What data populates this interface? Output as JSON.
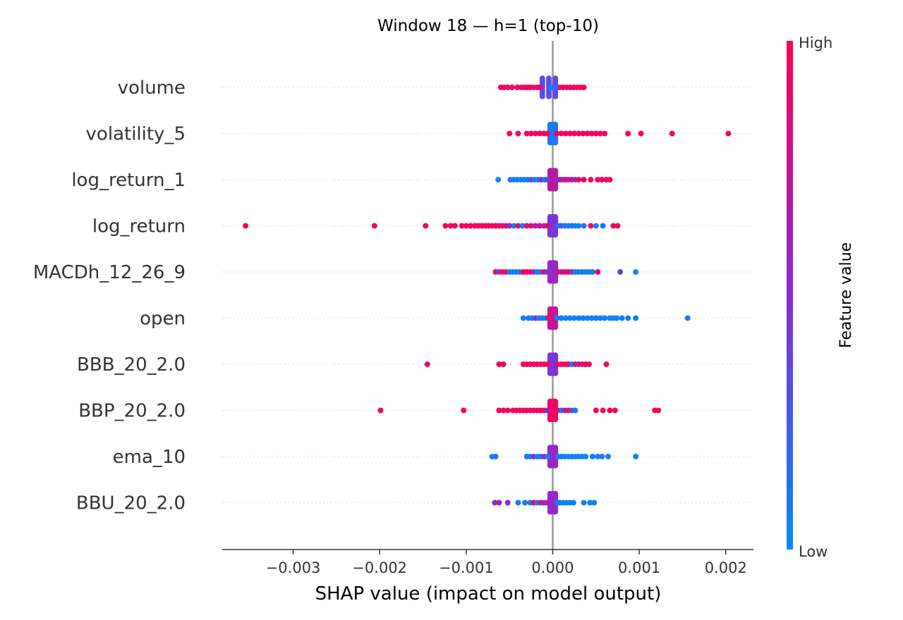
{
  "chart_data": {
    "type": "scatter",
    "subtype": "shap-beeswarm",
    "title": "Window 18 — h=1 (top-10)",
    "xlabel": "SHAP value (impact on model output)",
    "xlim": [
      -0.00382,
      0.00232
    ],
    "xticks": [
      -0.003,
      -0.002,
      -0.001,
      0.0,
      0.001,
      0.002
    ],
    "xtick_labels": [
      "−0.003",
      "−0.002",
      "−0.001",
      "0.000",
      "0.001",
      "0.002"
    ],
    "zero_line": 0.0,
    "colorbar": {
      "label": "Feature value",
      "high_label": "High",
      "low_label": "Low",
      "high_color": "#ff0052",
      "mid_color": "#8a2bd6",
      "low_color": "#008bfb"
    },
    "features": [
      {
        "name": "volume",
        "core": [
          -0.00012,
          3e-05
        ],
        "core_fv": 0.35,
        "points": [
          [
            -0.0006,
            0.95
          ],
          [
            -0.00056,
            0.95
          ],
          [
            -0.00052,
            0.9
          ],
          [
            -0.00047,
            0.95
          ],
          [
            -0.00041,
            0.95
          ],
          [
            -0.00036,
            0.9
          ],
          [
            -0.00032,
            0.95
          ],
          [
            -0.00029,
            0.95
          ],
          [
            -0.00026,
            0.95
          ],
          [
            -0.00022,
            0.95
          ],
          [
            -0.00018,
            0.9
          ],
          [
            -0.00015,
            0.95
          ],
          [
            8e-05,
            0.95
          ],
          [
            0.00012,
            0.95
          ],
          [
            0.00016,
            0.95
          ],
          [
            0.0002,
            0.95
          ],
          [
            0.00024,
            0.95
          ],
          [
            0.00028,
            0.95
          ],
          [
            0.00032,
            0.95
          ],
          [
            0.00036,
            0.95
          ],
          [
            -3e-05,
            0.1
          ],
          [
            3e-05,
            0.1
          ],
          [
            0.0,
            0.05
          ],
          [
            1e-05,
            0.15
          ]
        ]
      },
      {
        "name": "volatility_5",
        "core": [
          -3e-05,
          3e-05
        ],
        "core_fv": 0.1,
        "points": [
          [
            -0.0005,
            0.95
          ],
          [
            -0.0004,
            0.95
          ],
          [
            -0.0003,
            0.95
          ],
          [
            -0.00025,
            0.95
          ],
          [
            -0.0002,
            0.95
          ],
          [
            -0.00015,
            0.95
          ],
          [
            -0.0001,
            0.95
          ],
          [
            -6e-05,
            0.95
          ],
          [
            5e-05,
            0.95
          ],
          [
            0.0001,
            0.95
          ],
          [
            0.00015,
            0.95
          ],
          [
            0.0002,
            0.95
          ],
          [
            0.00025,
            0.95
          ],
          [
            0.0003,
            0.95
          ],
          [
            0.00035,
            0.95
          ],
          [
            0.0004,
            0.95
          ],
          [
            0.00045,
            0.95
          ],
          [
            0.0005,
            0.95
          ],
          [
            0.00055,
            0.95
          ],
          [
            0.0006,
            0.95
          ],
          [
            0.00087,
            0.95
          ],
          [
            0.00102,
            0.95
          ],
          [
            0.00138,
            0.95
          ],
          [
            0.00203,
            0.95
          ]
        ]
      },
      {
        "name": "log_return_1",
        "core": [
          -3e-05,
          3e-05
        ],
        "core_fv": 0.7,
        "points": [
          [
            -0.00063,
            0.05
          ],
          [
            -0.00049,
            0.1
          ],
          [
            -0.00045,
            0.05
          ],
          [
            -0.00041,
            0.1
          ],
          [
            -0.00037,
            0.05
          ],
          [
            -0.00033,
            0.1
          ],
          [
            -0.00029,
            0.05
          ],
          [
            -0.00025,
            0.3
          ],
          [
            -0.00021,
            0.05
          ],
          [
            -0.00017,
            0.1
          ],
          [
            -0.00013,
            0.5
          ],
          [
            -9e-05,
            0.1
          ],
          [
            -6e-05,
            0.4
          ],
          [
            6e-05,
            0.5
          ],
          [
            9e-05,
            0.6
          ],
          [
            0.00012,
            0.7
          ],
          [
            0.00015,
            0.8
          ],
          [
            0.00018,
            0.6
          ],
          [
            0.00022,
            0.9
          ],
          [
            0.00026,
            0.5
          ],
          [
            0.0003,
            0.9
          ],
          [
            0.00036,
            0.95
          ],
          [
            0.00044,
            0.95
          ],
          [
            0.00052,
            0.95
          ],
          [
            0.00057,
            0.95
          ],
          [
            0.00062,
            0.95
          ],
          [
            0.00066,
            0.95
          ]
        ]
      },
      {
        "name": "log_return",
        "core": [
          -3e-05,
          3e-05
        ],
        "core_fv": 0.45,
        "points": [
          [
            -0.00355,
            0.95
          ],
          [
            -0.00206,
            0.95
          ],
          [
            -0.00147,
            0.95
          ],
          [
            -0.00124,
            0.95
          ],
          [
            -0.00118,
            0.95
          ],
          [
            -0.00113,
            0.95
          ],
          [
            -0.00105,
            0.95
          ],
          [
            -0.001,
            0.95
          ],
          [
            -0.00095,
            0.95
          ],
          [
            -0.0009,
            0.95
          ],
          [
            -0.00086,
            0.95
          ],
          [
            -0.00082,
            0.95
          ],
          [
            -0.00078,
            0.95
          ],
          [
            -0.00074,
            0.95
          ],
          [
            -0.0007,
            0.95
          ],
          [
            -0.00066,
            0.95
          ],
          [
            -0.00062,
            0.95
          ],
          [
            -0.00058,
            0.9
          ],
          [
            -0.00054,
            0.95
          ],
          [
            -0.0005,
            0.5
          ],
          [
            -0.00045,
            0.1
          ],
          [
            -0.0004,
            0.9
          ],
          [
            -0.00035,
            0.1
          ],
          [
            -0.0003,
            0.8
          ],
          [
            -0.00025,
            0.9
          ],
          [
            -0.0002,
            0.5
          ],
          [
            -0.00015,
            0.9
          ],
          [
            -0.0001,
            0.6
          ],
          [
            -6e-05,
            0.9
          ],
          [
            6e-05,
            0.1
          ],
          [
            0.0001,
            0.3
          ],
          [
            0.00014,
            0.1
          ],
          [
            0.00018,
            0.05
          ],
          [
            0.00022,
            0.1
          ],
          [
            0.00026,
            0.05
          ],
          [
            0.0003,
            0.05
          ],
          [
            0.00036,
            0.1
          ],
          [
            0.00044,
            0.95
          ],
          [
            0.0005,
            0.05
          ],
          [
            0.00058,
            0.1
          ],
          [
            0.0007,
            0.95
          ],
          [
            0.00075,
            0.95
          ]
        ]
      },
      {
        "name": "MACDh_12_26_9",
        "core": [
          -3e-05,
          3e-05
        ],
        "core_fv": 0.55,
        "points": [
          [
            -0.00066,
            0.95
          ],
          [
            -0.00062,
            0.4
          ],
          [
            -0.00058,
            0.95
          ],
          [
            -0.00054,
            0.95
          ],
          [
            -0.0005,
            0.05
          ],
          [
            -0.00046,
            0.1
          ],
          [
            -0.00042,
            0.05
          ],
          [
            -0.00038,
            0.1
          ],
          [
            -0.00034,
            0.95
          ],
          [
            -0.0003,
            0.95
          ],
          [
            -0.00026,
            0.95
          ],
          [
            -0.00022,
            0.5
          ],
          [
            -0.00018,
            0.05
          ],
          [
            -0.00014,
            0.1
          ],
          [
            -0.0001,
            0.95
          ],
          [
            -6e-05,
            0.4
          ],
          [
            6e-05,
            0.95
          ],
          [
            0.0001,
            0.6
          ],
          [
            0.00014,
            0.95
          ],
          [
            0.00018,
            0.95
          ],
          [
            0.00022,
            0.5
          ],
          [
            0.00026,
            0.1
          ],
          [
            0.0003,
            0.05
          ],
          [
            0.00034,
            0.05
          ],
          [
            0.00038,
            0.05
          ],
          [
            0.00042,
            0.1
          ],
          [
            0.00046,
            0.05
          ],
          [
            0.00052,
            0.95
          ],
          [
            0.00078,
            0.4
          ],
          [
            0.00096,
            0.05
          ]
        ]
      },
      {
        "name": "open",
        "core": [
          -3e-05,
          3e-05
        ],
        "core_fv": 0.75,
        "points": [
          [
            -0.00034,
            0.05
          ],
          [
            -0.00028,
            0.1
          ],
          [
            -0.00024,
            0.05
          ],
          [
            -0.0002,
            0.5
          ],
          [
            -0.00016,
            0.05
          ],
          [
            -0.00012,
            0.1
          ],
          [
            -8e-05,
            0.05
          ],
          [
            -5e-05,
            0.9
          ],
          [
            5e-05,
            0.05
          ],
          [
            0.0001,
            0.1
          ],
          [
            0.00015,
            0.05
          ],
          [
            0.0002,
            0.05
          ],
          [
            0.00025,
            0.05
          ],
          [
            0.0003,
            0.05
          ],
          [
            0.00035,
            0.05
          ],
          [
            0.0004,
            0.05
          ],
          [
            0.00045,
            0.05
          ],
          [
            0.0005,
            0.05
          ],
          [
            0.00055,
            0.05
          ],
          [
            0.0006,
            0.05
          ],
          [
            0.00066,
            0.05
          ],
          [
            0.0007,
            0.05
          ],
          [
            0.00074,
            0.05
          ],
          [
            0.0008,
            0.05
          ],
          [
            0.00087,
            0.05
          ],
          [
            0.00096,
            0.05
          ],
          [
            0.00156,
            0.05
          ]
        ]
      },
      {
        "name": "BBB_20_2.0",
        "core": [
          -3e-05,
          3e-05
        ],
        "core_fv": 0.45,
        "points": [
          [
            -0.00145,
            0.95
          ],
          [
            -0.00062,
            0.95
          ],
          [
            -0.00057,
            0.95
          ],
          [
            -0.00034,
            0.95
          ],
          [
            -0.0003,
            0.95
          ],
          [
            -0.00026,
            0.95
          ],
          [
            -0.00022,
            0.95
          ],
          [
            -0.00018,
            0.95
          ],
          [
            -0.00014,
            0.95
          ],
          [
            -0.0001,
            0.95
          ],
          [
            -6e-05,
            0.95
          ],
          [
            6e-05,
            0.95
          ],
          [
            0.0001,
            0.95
          ],
          [
            0.00014,
            0.95
          ],
          [
            0.00018,
            0.95
          ],
          [
            0.00022,
            0.1
          ],
          [
            0.00026,
            0.7
          ],
          [
            0.0003,
            0.6
          ],
          [
            0.00034,
            0.95
          ],
          [
            0.00038,
            0.95
          ],
          [
            0.00042,
            0.95
          ],
          [
            0.00062,
            0.95
          ]
        ]
      },
      {
        "name": "BBP_20_2.0",
        "core": [
          -3e-05,
          3e-05
        ],
        "core_fv": 0.95,
        "points": [
          [
            -0.00199,
            0.95
          ],
          [
            -0.00103,
            0.95
          ],
          [
            -0.00062,
            0.95
          ],
          [
            -0.00057,
            0.95
          ],
          [
            -0.00052,
            0.95
          ],
          [
            -0.00046,
            0.95
          ],
          [
            -0.00042,
            0.95
          ],
          [
            -0.00038,
            0.95
          ],
          [
            -0.00034,
            0.95
          ],
          [
            -0.0003,
            0.95
          ],
          [
            -0.00026,
            0.95
          ],
          [
            -0.00022,
            0.9
          ],
          [
            -0.00018,
            0.95
          ],
          [
            -0.00014,
            0.95
          ],
          [
            -0.0001,
            0.95
          ],
          [
            -6e-05,
            0.5
          ],
          [
            6e-05,
            0.8
          ],
          [
            0.0001,
            0.1
          ],
          [
            0.00014,
            0.6
          ],
          [
            0.00018,
            0.95
          ],
          [
            0.00022,
            0.3
          ],
          [
            0.00026,
            0.1
          ],
          [
            0.0005,
            0.95
          ],
          [
            0.00058,
            0.95
          ],
          [
            0.00066,
            0.95
          ],
          [
            0.00072,
            0.95
          ],
          [
            0.00118,
            0.95
          ],
          [
            0.00122,
            0.95
          ]
        ]
      },
      {
        "name": "ema_10",
        "core": [
          -3e-05,
          3e-05
        ],
        "core_fv": 0.55,
        "points": [
          [
            -0.0007,
            0.05
          ],
          [
            -0.00066,
            0.1
          ],
          [
            -0.0003,
            0.1
          ],
          [
            -0.00026,
            0.05
          ],
          [
            -0.00022,
            0.5
          ],
          [
            -0.00018,
            0.05
          ],
          [
            -0.00014,
            0.1
          ],
          [
            -0.0001,
            0.6
          ],
          [
            -6e-05,
            0.05
          ],
          [
            6e-05,
            0.05
          ],
          [
            0.0001,
            0.1
          ],
          [
            0.00014,
            0.05
          ],
          [
            0.00018,
            0.05
          ],
          [
            0.00022,
            0.1
          ],
          [
            0.00026,
            0.05
          ],
          [
            0.0003,
            0.05
          ],
          [
            0.00034,
            0.05
          ],
          [
            0.00038,
            0.05
          ],
          [
            0.00046,
            0.05
          ],
          [
            0.00052,
            0.05
          ],
          [
            0.00057,
            0.1
          ],
          [
            0.00064,
            0.05
          ],
          [
            0.00096,
            0.05
          ]
        ]
      },
      {
        "name": "BBU_20_2.0",
        "core": [
          -3e-05,
          3e-05
        ],
        "core_fv": 0.55,
        "points": [
          [
            -0.00067,
            0.45
          ],
          [
            -0.00062,
            0.7
          ],
          [
            -0.00052,
            0.5
          ],
          [
            -0.0004,
            0.05
          ],
          [
            -0.00032,
            0.1
          ],
          [
            -0.00026,
            0.05
          ],
          [
            -0.00022,
            0.95
          ],
          [
            -0.00018,
            0.1
          ],
          [
            -0.00014,
            0.8
          ],
          [
            -0.0001,
            0.5
          ],
          [
            -6e-05,
            0.7
          ],
          [
            5e-05,
            0.05
          ],
          [
            8e-05,
            0.1
          ],
          [
            0.00012,
            0.05
          ],
          [
            0.00016,
            0.05
          ],
          [
            0.0002,
            0.1
          ],
          [
            0.00024,
            0.05
          ],
          [
            0.00036,
            0.1
          ],
          [
            0.00043,
            0.05
          ],
          [
            0.00048,
            0.05
          ]
        ]
      }
    ]
  }
}
